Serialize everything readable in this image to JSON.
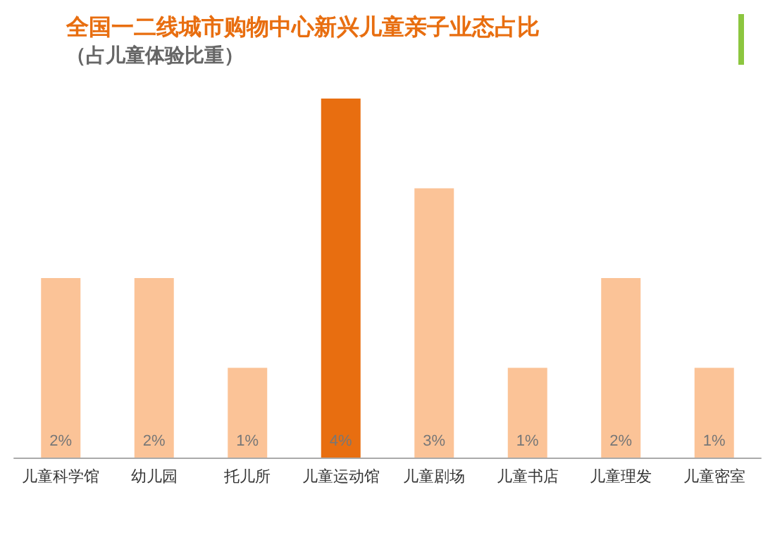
{
  "chart_data": {
    "type": "bar",
    "title": "全国一二线城市购物中心新兴儿童亲子业态占比",
    "subtitle": "（占儿童体验比重）",
    "categories": [
      "儿童科学馆",
      "幼儿园",
      "托儿所",
      "儿童运动馆",
      "儿童剧场",
      "儿童书店",
      "儿童理发",
      "儿童密室"
    ],
    "values": [
      2,
      2,
      1,
      4,
      3,
      1,
      2,
      1
    ],
    "value_labels": [
      "2%",
      "2%",
      "1%",
      "4%",
      "3%",
      "1%",
      "2%",
      "1%"
    ],
    "colors": [
      "#fbc397",
      "#fbc397",
      "#fbc397",
      "#e86e10",
      "#fbc397",
      "#fbc397",
      "#fbc397",
      "#fbc397"
    ],
    "grid": false
  }
}
